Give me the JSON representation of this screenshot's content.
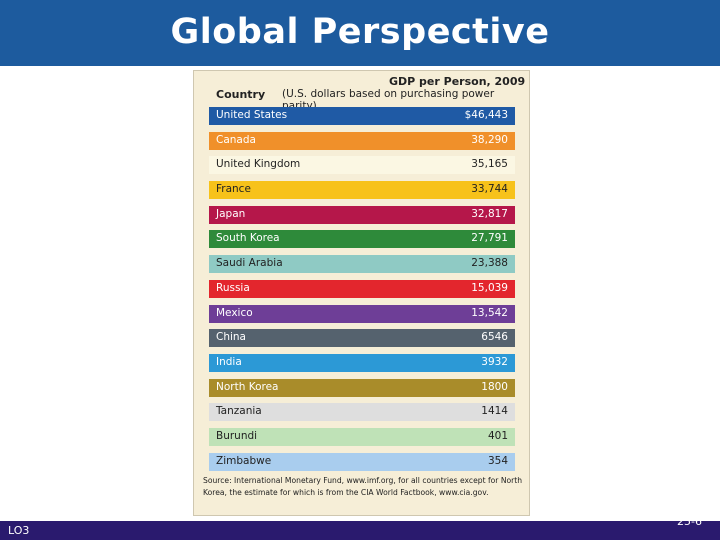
{
  "header": {
    "title": "Global Perspective"
  },
  "table": {
    "col_country": "Country",
    "col_gdp": "GDP per Person, 2009",
    "col_gdp_sub": "(U.S. dollars based on purchasing power parity)",
    "rows": [
      {
        "country": "United States",
        "value": "$46,443",
        "color": "#1f5aa5",
        "text": "light"
      },
      {
        "country": "Canada",
        "value": "38,290",
        "color": "#f0902a",
        "text": "light"
      },
      {
        "country": "United Kingdom",
        "value": "35,165",
        "color": "#fbf7e3",
        "text": "dark"
      },
      {
        "country": "France",
        "value": "33,744",
        "color": "#f7c21a",
        "text": "dark"
      },
      {
        "country": "Japan",
        "value": "32,817",
        "color": "#b5174a",
        "text": "light"
      },
      {
        "country": "South Korea",
        "value": "27,791",
        "color": "#2e8a3a",
        "text": "light"
      },
      {
        "country": "Saudi Arabia",
        "value": "23,388",
        "color": "#8fcac4",
        "text": "dark"
      },
      {
        "country": "Russia",
        "value": "15,039",
        "color": "#e3262d",
        "text": "light"
      },
      {
        "country": "Mexico",
        "value": "13,542",
        "color": "#6e3e97",
        "text": "light"
      },
      {
        "country": "China",
        "value": "6546",
        "color": "#55626e",
        "text": "light"
      },
      {
        "country": "India",
        "value": "3932",
        "color": "#2c99d6",
        "text": "light"
      },
      {
        "country": "North Korea",
        "value": "1800",
        "color": "#a98c2a",
        "text": "light"
      },
      {
        "country": "Tanzania",
        "value": "1414",
        "color": "#dedede",
        "text": "dark"
      },
      {
        "country": "Burundi",
        "value": "401",
        "color": "#bfe2b7",
        "text": "dark"
      },
      {
        "country": "Zimbabwe",
        "value": "354",
        "color": "#a9cdee",
        "text": "dark"
      }
    ],
    "source": "Source: International Monetary Fund, www.imf.org, for all countries except for North Korea, the estimate for which is from the CIA World Factbook, www.cia.gov."
  },
  "footer": {
    "lo": "LO3",
    "slide_number": "25-6"
  }
}
